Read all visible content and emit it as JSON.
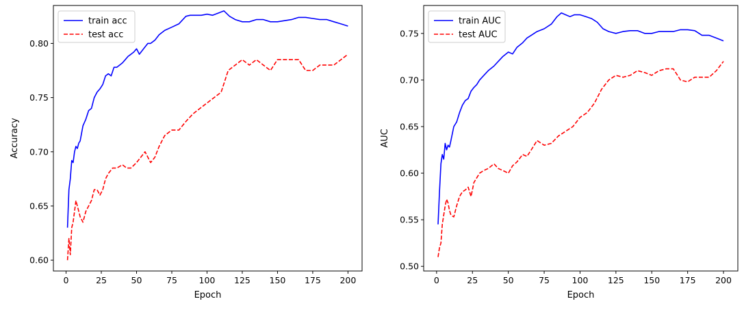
{
  "chart_data": [
    {
      "type": "line",
      "xlabel": "Epoch",
      "ylabel": "Accuracy",
      "xlim": [
        -9,
        210
      ],
      "ylim": [
        0.59,
        0.835
      ],
      "xticks": [
        0,
        25,
        50,
        75,
        100,
        125,
        150,
        175,
        200
      ],
      "yticks": [
        0.6,
        0.65,
        0.7,
        0.75,
        0.8
      ],
      "ytick_labels": [
        "0.60",
        "0.65",
        "0.70",
        "0.75",
        "0.80"
      ],
      "legend_position": "upper-left",
      "grid": false,
      "series": [
        {
          "name": "train acc",
          "color": "#0000ff",
          "dash": "solid",
          "x": [
            1,
            2,
            3,
            4,
            5,
            6,
            7,
            8,
            9,
            10,
            12,
            14,
            16,
            18,
            20,
            22,
            24,
            26,
            28,
            30,
            32,
            34,
            36,
            38,
            40,
            42,
            44,
            46,
            48,
            50,
            52,
            55,
            58,
            60,
            63,
            66,
            70,
            75,
            80,
            85,
            88,
            92,
            96,
            100,
            104,
            108,
            112,
            116,
            120,
            125,
            130,
            135,
            140,
            145,
            150,
            155,
            160,
            165,
            170,
            175,
            180,
            185,
            190,
            195,
            200
          ],
          "values": [
            0.63,
            0.665,
            0.675,
            0.692,
            0.69,
            0.7,
            0.705,
            0.703,
            0.708,
            0.71,
            0.724,
            0.73,
            0.738,
            0.74,
            0.75,
            0.755,
            0.758,
            0.762,
            0.77,
            0.772,
            0.77,
            0.778,
            0.778,
            0.78,
            0.782,
            0.785,
            0.788,
            0.79,
            0.792,
            0.795,
            0.79,
            0.795,
            0.8,
            0.8,
            0.803,
            0.808,
            0.812,
            0.815,
            0.818,
            0.825,
            0.826,
            0.826,
            0.826,
            0.827,
            0.826,
            0.828,
            0.83,
            0.825,
            0.822,
            0.82,
            0.82,
            0.822,
            0.822,
            0.82,
            0.82,
            0.821,
            0.822,
            0.824,
            0.824,
            0.823,
            0.822,
            0.822,
            0.82,
            0.818,
            0.816
          ]
        },
        {
          "name": "test acc",
          "color": "#ff0000",
          "dash": "dashed",
          "x": [
            1,
            2,
            3,
            4,
            5,
            6,
            7,
            8,
            9,
            10,
            12,
            14,
            16,
            18,
            20,
            22,
            24,
            26,
            28,
            30,
            33,
            36,
            40,
            43,
            46,
            50,
            53,
            56,
            60,
            63,
            66,
            70,
            75,
            80,
            85,
            90,
            95,
            100,
            105,
            110,
            115,
            120,
            125,
            130,
            135,
            140,
            145,
            150,
            155,
            160,
            165,
            170,
            175,
            180,
            185,
            190,
            195,
            200
          ],
          "values": [
            0.6,
            0.62,
            0.605,
            0.63,
            0.635,
            0.645,
            0.655,
            0.65,
            0.645,
            0.64,
            0.635,
            0.645,
            0.65,
            0.655,
            0.665,
            0.665,
            0.66,
            0.665,
            0.675,
            0.68,
            0.685,
            0.685,
            0.688,
            0.685,
            0.685,
            0.69,
            0.695,
            0.7,
            0.69,
            0.695,
            0.705,
            0.715,
            0.72,
            0.72,
            0.728,
            0.735,
            0.74,
            0.745,
            0.75,
            0.755,
            0.775,
            0.78,
            0.785,
            0.78,
            0.785,
            0.78,
            0.775,
            0.785,
            0.785,
            0.785,
            0.785,
            0.775,
            0.775,
            0.78,
            0.78,
            0.78,
            0.785,
            0.79
          ]
        }
      ]
    },
    {
      "type": "line",
      "xlabel": "Epoch",
      "ylabel": "AUC",
      "xlim": [
        -9,
        210
      ],
      "ylim": [
        0.495,
        0.78
      ],
      "xticks": [
        0,
        25,
        50,
        75,
        100,
        125,
        150,
        175,
        200
      ],
      "yticks": [
        0.5,
        0.55,
        0.6,
        0.65,
        0.7,
        0.75
      ],
      "ytick_labels": [
        "0.50",
        "0.55",
        "0.60",
        "0.65",
        "0.70",
        "0.75"
      ],
      "legend_position": "upper-left",
      "grid": false,
      "series": [
        {
          "name": "train AUC",
          "color": "#0000ff",
          "dash": "solid",
          "x": [
            1,
            2,
            3,
            4,
            5,
            6,
            7,
            8,
            9,
            10,
            12,
            14,
            16,
            18,
            20,
            22,
            24,
            26,
            28,
            30,
            33,
            36,
            40,
            43,
            46,
            50,
            53,
            56,
            60,
            63,
            66,
            70,
            75,
            80,
            84,
            87,
            90,
            93,
            96,
            100,
            104,
            108,
            112,
            116,
            120,
            125,
            130,
            135,
            140,
            145,
            150,
            155,
            160,
            165,
            170,
            175,
            180,
            185,
            190,
            195,
            200
          ],
          "values": [
            0.545,
            0.58,
            0.61,
            0.62,
            0.615,
            0.632,
            0.625,
            0.63,
            0.628,
            0.635,
            0.65,
            0.655,
            0.665,
            0.673,
            0.678,
            0.68,
            0.688,
            0.692,
            0.695,
            0.7,
            0.705,
            0.71,
            0.715,
            0.72,
            0.725,
            0.73,
            0.728,
            0.735,
            0.74,
            0.745,
            0.748,
            0.752,
            0.755,
            0.76,
            0.768,
            0.772,
            0.77,
            0.768,
            0.77,
            0.77,
            0.768,
            0.766,
            0.762,
            0.755,
            0.752,
            0.75,
            0.752,
            0.753,
            0.753,
            0.75,
            0.75,
            0.752,
            0.752,
            0.752,
            0.754,
            0.754,
            0.753,
            0.748,
            0.748,
            0.745,
            0.742
          ]
        },
        {
          "name": "test AUC",
          "color": "#ff0000",
          "dash": "dashed",
          "x": [
            1,
            2,
            3,
            4,
            5,
            6,
            7,
            8,
            9,
            10,
            12,
            14,
            16,
            18,
            20,
            22,
            24,
            26,
            28,
            30,
            33,
            36,
            40,
            43,
            46,
            50,
            53,
            56,
            60,
            63,
            66,
            70,
            75,
            80,
            85,
            90,
            95,
            100,
            105,
            110,
            115,
            120,
            125,
            130,
            135,
            140,
            145,
            150,
            155,
            160,
            165,
            170,
            175,
            180,
            185,
            190,
            195,
            200
          ],
          "values": [
            0.51,
            0.52,
            0.525,
            0.545,
            0.555,
            0.565,
            0.572,
            0.568,
            0.56,
            0.555,
            0.553,
            0.565,
            0.575,
            0.58,
            0.582,
            0.585,
            0.575,
            0.59,
            0.595,
            0.6,
            0.603,
            0.605,
            0.61,
            0.605,
            0.603,
            0.6,
            0.608,
            0.612,
            0.62,
            0.618,
            0.625,
            0.635,
            0.63,
            0.632,
            0.64,
            0.645,
            0.65,
            0.66,
            0.665,
            0.675,
            0.69,
            0.7,
            0.705,
            0.703,
            0.705,
            0.71,
            0.708,
            0.705,
            0.71,
            0.712,
            0.712,
            0.7,
            0.698,
            0.703,
            0.703,
            0.703,
            0.71,
            0.72
          ]
        }
      ]
    }
  ]
}
